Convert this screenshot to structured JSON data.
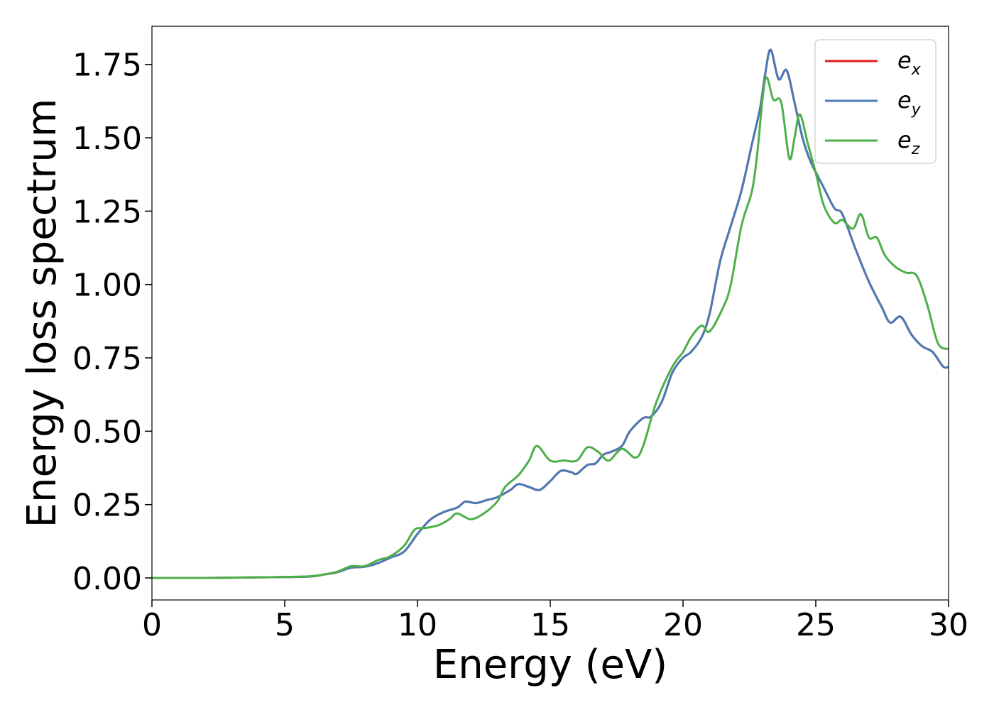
{
  "chart_data": {
    "type": "line",
    "title": "",
    "xlabel": "Energy (eV)",
    "ylabel": "Energy loss spectrum",
    "xlim": [
      0,
      30
    ],
    "ylim": [
      -0.075,
      1.88
    ],
    "xticks": [
      0,
      5,
      10,
      15,
      20,
      25,
      30
    ],
    "xtick_labels": [
      "0",
      "5",
      "10",
      "15",
      "20",
      "25",
      "30"
    ],
    "yticks": [
      0.0,
      0.25,
      0.5,
      0.75,
      1.0,
      1.25,
      1.5,
      1.75
    ],
    "ytick_labels": [
      "0.00",
      "0.25",
      "0.50",
      "0.75",
      "1.00",
      "1.25",
      "1.50",
      "1.75"
    ],
    "grid": false,
    "legend_position": "top-right",
    "series": [
      {
        "name": "e_x",
        "legend_base": "e",
        "legend_sub": "x",
        "color": "#e41a1c",
        "points": [
          [
            0,
            0
          ],
          [
            2,
            0
          ],
          [
            4,
            0.002
          ],
          [
            5,
            0.003
          ],
          [
            6,
            0.005
          ],
          [
            6.5,
            0.012
          ],
          [
            7,
            0.02
          ],
          [
            7.5,
            0.035
          ],
          [
            8,
            0.038
          ],
          [
            8.5,
            0.05
          ],
          [
            9,
            0.07
          ],
          [
            9.5,
            0.09
          ],
          [
            10,
            0.15
          ],
          [
            10.5,
            0.2
          ],
          [
            11,
            0.225
          ],
          [
            11.5,
            0.24
          ],
          [
            11.8,
            0.26
          ],
          [
            12.2,
            0.255
          ],
          [
            12.6,
            0.265
          ],
          [
            13,
            0.275
          ],
          [
            13.5,
            0.3
          ],
          [
            13.8,
            0.32
          ],
          [
            14.2,
            0.31
          ],
          [
            14.6,
            0.3
          ],
          [
            15,
            0.33
          ],
          [
            15.4,
            0.365
          ],
          [
            15.8,
            0.36
          ],
          [
            16,
            0.355
          ],
          [
            16.4,
            0.385
          ],
          [
            16.7,
            0.39
          ],
          [
            17,
            0.42
          ],
          [
            17.3,
            0.43
          ],
          [
            17.7,
            0.45
          ],
          [
            18,
            0.5
          ],
          [
            18.5,
            0.545
          ],
          [
            18.8,
            0.55
          ],
          [
            19.2,
            0.6
          ],
          [
            19.6,
            0.7
          ],
          [
            20,
            0.75
          ],
          [
            20.3,
            0.77
          ],
          [
            20.7,
            0.82
          ],
          [
            21,
            0.9
          ],
          [
            21.4,
            1.08
          ],
          [
            21.8,
            1.2
          ],
          [
            22.2,
            1.32
          ],
          [
            22.6,
            1.48
          ],
          [
            22.9,
            1.6
          ],
          [
            23.1,
            1.72
          ],
          [
            23.3,
            1.8
          ],
          [
            23.6,
            1.7
          ],
          [
            23.9,
            1.73
          ],
          [
            24.2,
            1.62
          ],
          [
            24.5,
            1.5
          ],
          [
            24.8,
            1.42
          ],
          [
            25.3,
            1.33
          ],
          [
            25.7,
            1.26
          ],
          [
            26,
            1.24
          ],
          [
            26.5,
            1.12
          ],
          [
            27,
            1.01
          ],
          [
            27.5,
            0.92
          ],
          [
            27.8,
            0.87
          ],
          [
            28.2,
            0.89
          ],
          [
            28.6,
            0.83
          ],
          [
            29,
            0.79
          ],
          [
            29.4,
            0.77
          ],
          [
            29.8,
            0.72
          ],
          [
            30,
            0.72
          ]
        ]
      },
      {
        "name": "e_y",
        "legend_base": "e",
        "legend_sub": "y",
        "color": "#4a7ab7",
        "points": [
          [
            0,
            0
          ],
          [
            2,
            0
          ],
          [
            4,
            0.002
          ],
          [
            5,
            0.003
          ],
          [
            6,
            0.005
          ],
          [
            6.5,
            0.012
          ],
          [
            7,
            0.02
          ],
          [
            7.5,
            0.035
          ],
          [
            8,
            0.038
          ],
          [
            8.5,
            0.05
          ],
          [
            9,
            0.07
          ],
          [
            9.5,
            0.09
          ],
          [
            10,
            0.15
          ],
          [
            10.5,
            0.2
          ],
          [
            11,
            0.225
          ],
          [
            11.5,
            0.24
          ],
          [
            11.8,
            0.26
          ],
          [
            12.2,
            0.255
          ],
          [
            12.6,
            0.265
          ],
          [
            13,
            0.275
          ],
          [
            13.5,
            0.3
          ],
          [
            13.8,
            0.32
          ],
          [
            14.2,
            0.31
          ],
          [
            14.6,
            0.3
          ],
          [
            15,
            0.33
          ],
          [
            15.4,
            0.365
          ],
          [
            15.8,
            0.36
          ],
          [
            16,
            0.355
          ],
          [
            16.4,
            0.385
          ],
          [
            16.7,
            0.39
          ],
          [
            17,
            0.42
          ],
          [
            17.3,
            0.43
          ],
          [
            17.7,
            0.45
          ],
          [
            18,
            0.5
          ],
          [
            18.5,
            0.545
          ],
          [
            18.8,
            0.55
          ],
          [
            19.2,
            0.6
          ],
          [
            19.6,
            0.7
          ],
          [
            20,
            0.75
          ],
          [
            20.3,
            0.77
          ],
          [
            20.7,
            0.82
          ],
          [
            21,
            0.9
          ],
          [
            21.4,
            1.08
          ],
          [
            21.8,
            1.2
          ],
          [
            22.2,
            1.32
          ],
          [
            22.6,
            1.48
          ],
          [
            22.9,
            1.6
          ],
          [
            23.1,
            1.72
          ],
          [
            23.3,
            1.8
          ],
          [
            23.6,
            1.7
          ],
          [
            23.9,
            1.73
          ],
          [
            24.2,
            1.62
          ],
          [
            24.5,
            1.5
          ],
          [
            24.8,
            1.42
          ],
          [
            25.3,
            1.33
          ],
          [
            25.7,
            1.26
          ],
          [
            26,
            1.24
          ],
          [
            26.5,
            1.12
          ],
          [
            27,
            1.01
          ],
          [
            27.5,
            0.92
          ],
          [
            27.8,
            0.87
          ],
          [
            28.2,
            0.89
          ],
          [
            28.6,
            0.83
          ],
          [
            29,
            0.79
          ],
          [
            29.4,
            0.77
          ],
          [
            29.8,
            0.72
          ],
          [
            30,
            0.72
          ]
        ]
      },
      {
        "name": "e_z",
        "legend_base": "e",
        "legend_sub": "z",
        "color": "#4daf4a",
        "points": [
          [
            0,
            0
          ],
          [
            2,
            0
          ],
          [
            4,
            0.002
          ],
          [
            5,
            0.003
          ],
          [
            6,
            0.006
          ],
          [
            6.5,
            0.012
          ],
          [
            7,
            0.022
          ],
          [
            7.5,
            0.04
          ],
          [
            8,
            0.04
          ],
          [
            8.5,
            0.06
          ],
          [
            9,
            0.075
          ],
          [
            9.5,
            0.11
          ],
          [
            9.9,
            0.165
          ],
          [
            10.3,
            0.17
          ],
          [
            10.8,
            0.18
          ],
          [
            11.2,
            0.2
          ],
          [
            11.5,
            0.22
          ],
          [
            12,
            0.2
          ],
          [
            12.5,
            0.22
          ],
          [
            13,
            0.26
          ],
          [
            13.3,
            0.31
          ],
          [
            13.8,
            0.35
          ],
          [
            14.2,
            0.4
          ],
          [
            14.5,
            0.45
          ],
          [
            15,
            0.4
          ],
          [
            15.5,
            0.4
          ],
          [
            16,
            0.4
          ],
          [
            16.4,
            0.445
          ],
          [
            16.8,
            0.43
          ],
          [
            17.2,
            0.4
          ],
          [
            17.7,
            0.44
          ],
          [
            18.2,
            0.41
          ],
          [
            18.5,
            0.45
          ],
          [
            19,
            0.6
          ],
          [
            19.6,
            0.72
          ],
          [
            20,
            0.77
          ],
          [
            20.3,
            0.82
          ],
          [
            20.7,
            0.86
          ],
          [
            21,
            0.84
          ],
          [
            21.5,
            0.92
          ],
          [
            21.8,
            1.0
          ],
          [
            22.2,
            1.2
          ],
          [
            22.6,
            1.32
          ],
          [
            22.8,
            1.45
          ],
          [
            23.1,
            1.7
          ],
          [
            23.4,
            1.63
          ],
          [
            23.7,
            1.62
          ],
          [
            24,
            1.43
          ],
          [
            24.2,
            1.5
          ],
          [
            24.4,
            1.58
          ],
          [
            24.7,
            1.48
          ],
          [
            25,
            1.38
          ],
          [
            25.3,
            1.27
          ],
          [
            25.7,
            1.21
          ],
          [
            26,
            1.22
          ],
          [
            26.4,
            1.19
          ],
          [
            26.7,
            1.24
          ],
          [
            27,
            1.16
          ],
          [
            27.3,
            1.16
          ],
          [
            27.6,
            1.1
          ],
          [
            28,
            1.06
          ],
          [
            28.4,
            1.04
          ],
          [
            28.8,
            1.03
          ],
          [
            29.2,
            0.93
          ],
          [
            29.6,
            0.8
          ],
          [
            30,
            0.78
          ]
        ]
      }
    ]
  }
}
